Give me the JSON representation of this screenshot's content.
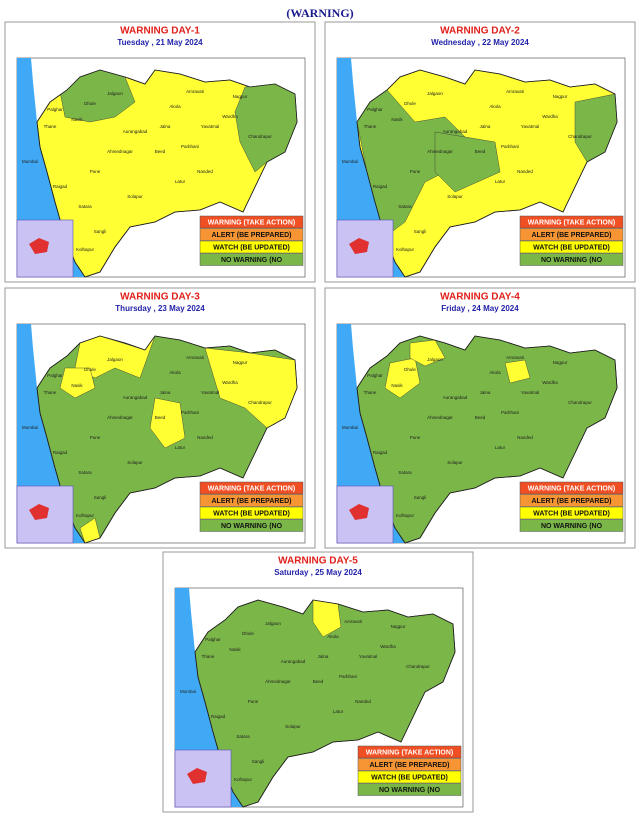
{
  "header": {
    "title": "(WARNING)"
  },
  "legend": [
    {
      "label": "WARNING (TAKE ACTION)",
      "color": "#f04e23"
    },
    {
      "label": "ALERT (BE PREPARED)",
      "color": "#f79433"
    },
    {
      "label": "WATCH (BE UPDATED)",
      "color": "#ffff00"
    },
    {
      "label": "NO WARNING (NO",
      "color": "#7ab648"
    }
  ],
  "districts": [
    "Jalgaon",
    "Dhule",
    "Nasik",
    "Akola",
    "Amravati",
    "Nagpur",
    "Wardha",
    "Yavatmal",
    "Chandrapur",
    "Aurangabad",
    "Jalna",
    "Ahmednagar",
    "Beed",
    "Thane",
    "Mumbai",
    "Pune",
    "Satara",
    "Sangli",
    "Solapur",
    "Latur",
    "Nanded",
    "Parbhani",
    "Palghar",
    "Raigad",
    "Kolhapur"
  ],
  "panels": [
    {
      "title": "WARNING DAY-1",
      "date": "Tuesday , 21 May 2024"
    },
    {
      "title": "WARNING DAY-2",
      "date": "Wednesday , 22 May 2024"
    },
    {
      "title": "WARNING DAY-3",
      "date": "Thursday , 23 May 2024"
    },
    {
      "title": "WARNING DAY-4",
      "date": "Friday , 24 May 2024"
    },
    {
      "title": "WARNING DAY-5",
      "date": "Saturday , 25 May 2024"
    }
  ]
}
